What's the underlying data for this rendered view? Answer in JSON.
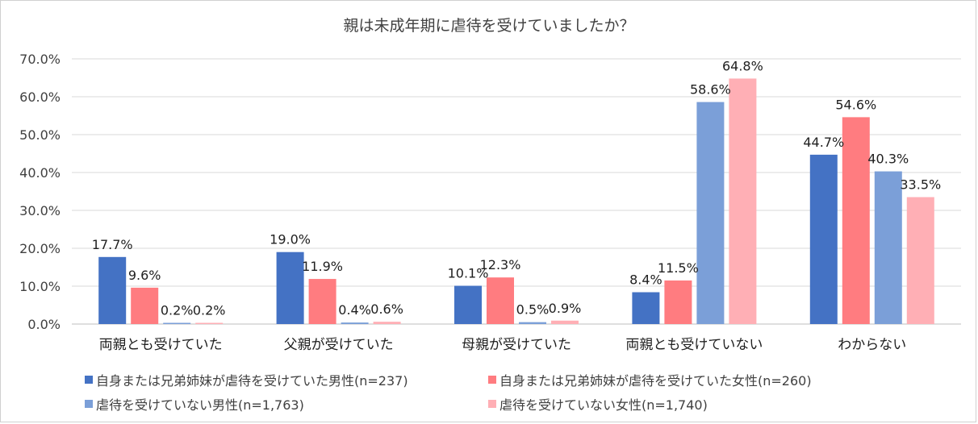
{
  "chart_data": {
    "type": "bar",
    "title": "親は未成年期に虐待を受けていましたか？",
    "categories": [
      "両親とも受けていた",
      "父親が受けていた",
      "母親が受けていた",
      "両親とも受けていない",
      "わからない"
    ],
    "series": [
      {
        "name": "自身または兄弟姉妹が虐待を受けていた男性(n=237)",
        "color": "#4472c4",
        "values": [
          17.7,
          19.0,
          10.1,
          8.4,
          44.7
        ],
        "labels": [
          "17.7%",
          "19.0%",
          "10.1%",
          "8.4%",
          "44.7%"
        ]
      },
      {
        "name": "自身または兄弟姉妹が虐待を受けていた女性(n=260)",
        "color": "#ff7c80",
        "values": [
          9.6,
          11.9,
          12.3,
          11.5,
          54.6
        ],
        "labels": [
          "9.6%",
          "11.9%",
          "12.3%",
          "11.5%",
          "54.6%"
        ]
      },
      {
        "name": "虐待を受けていない男性(n=1,763)",
        "color": "#7b9fd8",
        "values": [
          0.2,
          0.4,
          0.5,
          58.6,
          40.3
        ],
        "labels": [
          "0.2%",
          "0.4%",
          "0.5%",
          "58.6%",
          "40.3%"
        ]
      },
      {
        "name": "虐待を受けていない女性(n=1,740)",
        "color": "#ffafb5",
        "values": [
          0.2,
          0.6,
          0.9,
          64.8,
          33.5
        ],
        "labels": [
          "0.2%",
          "0.6%",
          "0.9%",
          "64.8%",
          "33.5%"
        ]
      }
    ],
    "y_ticks": [
      "0.0%",
      "10.0%",
      "20.0%",
      "30.0%",
      "40.0%",
      "50.0%",
      "60.0%",
      "70.0%"
    ],
    "ylim": [
      0,
      70
    ],
    "xlabel": "",
    "ylabel": "",
    "grid": true,
    "legend_position": "bottom"
  }
}
